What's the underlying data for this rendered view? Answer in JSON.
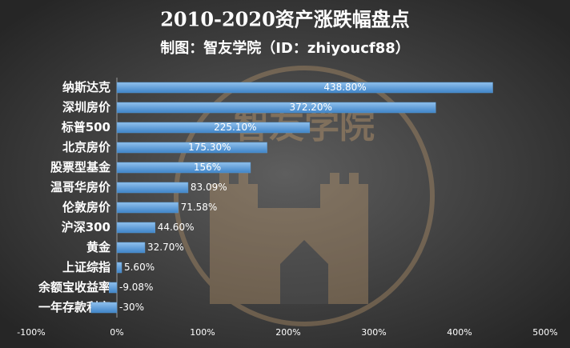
{
  "chart_data": {
    "type": "hbar",
    "title": "2010-2020资产涨跌幅盘点",
    "subtitle": "制图：智友学院（ID：zhiyoucf88）",
    "watermark": "智友学院",
    "categories": [
      "纳斯达克",
      "深圳房价",
      "标普500",
      "北京房价",
      "股票型基金",
      "温哥华房价",
      "伦敦房价",
      "沪深300",
      "黄金",
      "上证综指",
      "余额宝收益率",
      "一年存款利率"
    ],
    "values": [
      438.8,
      372.2,
      225.1,
      175.3,
      156,
      83.09,
      71.58,
      44.6,
      32.7,
      5.6,
      -9.08,
      -30
    ],
    "value_labels": [
      "438.80%",
      "372.20%",
      "225.10%",
      "175.30%",
      "156%",
      "83.09%",
      "71.58%",
      "44.60%",
      "32.70%",
      "5.60%",
      "-9.08%",
      "-30%"
    ],
    "color": "#5b9bd5",
    "xlim": [
      -100,
      500
    ],
    "xticks": [
      {
        "value": -100,
        "label": "-100%"
      },
      {
        "value": 0,
        "label": "0%"
      },
      {
        "value": 100,
        "label": "100%"
      },
      {
        "value": 200,
        "label": "200%"
      },
      {
        "value": 300,
        "label": "300%"
      },
      {
        "value": 400,
        "label": "400%"
      },
      {
        "value": 500,
        "label": "500%"
      }
    ]
  }
}
